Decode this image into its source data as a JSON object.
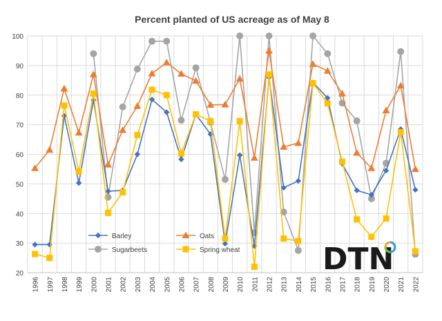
{
  "chart_data": {
    "type": "line",
    "title": "Percent planted of US acreage as of May 8",
    "xlabel": "",
    "ylabel": "",
    "ylim": [
      20,
      100
    ],
    "yticks": [
      20,
      30,
      40,
      50,
      60,
      70,
      80,
      90,
      100
    ],
    "grid": true,
    "legend_position": "bottom-left",
    "categories": [
      "1996",
      "1997",
      "1998",
      "1999",
      "2000",
      "2001",
      "2002",
      "2003",
      "2004",
      "2005",
      "2006",
      "2007",
      "2008",
      "2009",
      "2010",
      "2011",
      "2012",
      "2013",
      "2014",
      "2015",
      "2016",
      "2017",
      "2018",
      "2019",
      "2020",
      "2021",
      "2022"
    ],
    "series": [
      {
        "name": "Barley",
        "color": "#4472C4",
        "marker": "diamond",
        "values": [
          29.5,
          29.5,
          73,
          50.3,
          78.3,
          47.5,
          47.8,
          60,
          78.5,
          74.2,
          58.3,
          73.5,
          66.8,
          29.8,
          59.7,
          29,
          86,
          48.7,
          51,
          84.3,
          79,
          56.8,
          47.8,
          46.3,
          54.5,
          68.5,
          48
        ]
      },
      {
        "name": "Oats",
        "color": "#ED7D31",
        "marker": "triangle",
        "values": [
          55.3,
          61.5,
          82.2,
          67.3,
          87,
          56.5,
          68.2,
          76.3,
          87.3,
          91,
          87.2,
          84.8,
          76.7,
          76.8,
          85.5,
          58.8,
          95,
          62.5,
          63.8,
          90.5,
          88.2,
          80.5,
          60.5,
          55.3,
          74.8,
          83.2,
          55
        ]
      },
      {
        "name": "Sugarbeets",
        "color": "#A5A5A5",
        "marker": "circle",
        "values": [
          null,
          null,
          null,
          null,
          94,
          45.5,
          76,
          88.8,
          98.2,
          98.2,
          71.5,
          89.2,
          70.8,
          51.5,
          100,
          33.5,
          100,
          40.5,
          27.5,
          100,
          94,
          77.3,
          71.3,
          45,
          57,
          94.7,
          26.2
        ]
      },
      {
        "name": "Spring wheat",
        "color": "#FFC000",
        "marker": "square",
        "values": [
          26.3,
          25,
          76.5,
          54.2,
          80.5,
          40.2,
          47.2,
          66.5,
          81.8,
          80,
          60.3,
          73.5,
          71.2,
          31.5,
          71.2,
          22,
          87,
          31.5,
          30.7,
          84,
          77.2,
          57.5,
          38,
          32.1,
          38.3,
          67.5,
          27.2
        ]
      }
    ],
    "legend": {
      "rows": [
        [
          "Barley",
          "Oats"
        ],
        [
          "Sugarbeets",
          "Spring wheat"
        ]
      ]
    }
  },
  "logo": {
    "text": "DTN",
    "ring_colors": [
      "#F5A623",
      "#2E9CDB",
      "#7AC143"
    ]
  },
  "colors": {
    "grid": "#D9D9D9",
    "axis": "#BFBFBF",
    "text": "#404040"
  }
}
